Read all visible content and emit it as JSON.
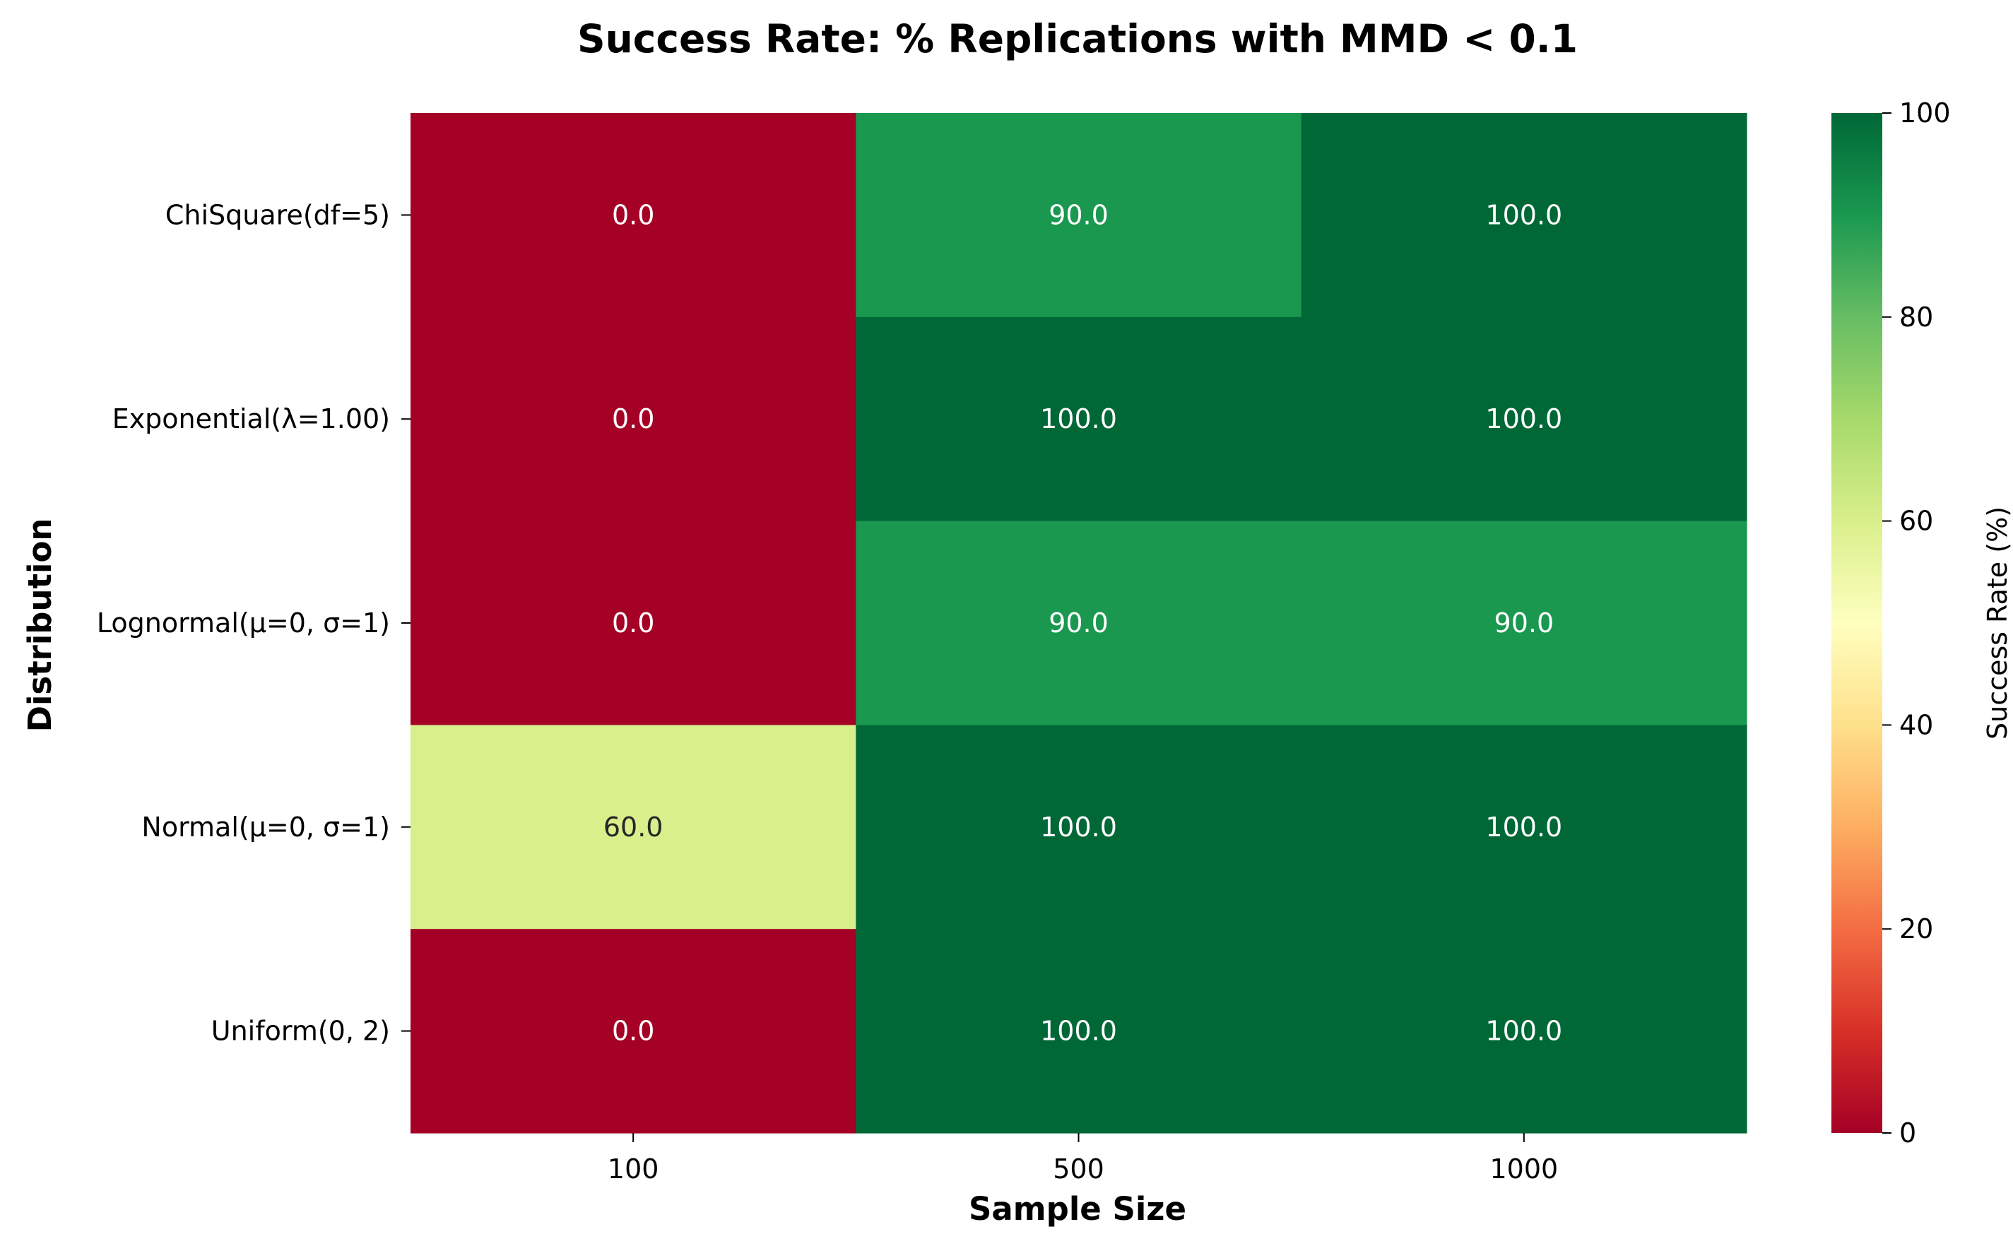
{
  "chart_data": {
    "type": "heatmap",
    "title": "Success Rate: % Replications with MMD < 0.1",
    "xlabel": "Sample Size",
    "ylabel": "Distribution",
    "x_categories": [
      "100",
      "500",
      "1000"
    ],
    "y_categories": [
      "ChiSquare(df=5)",
      "Exponential(λ=1.00)",
      "Lognormal(μ=0, σ=1)",
      "Normal(μ=0, σ=1)",
      "Uniform(0, 2)"
    ],
    "values": [
      [
        0.0,
        90.0,
        100.0
      ],
      [
        0.0,
        100.0,
        100.0
      ],
      [
        0.0,
        90.0,
        90.0
      ],
      [
        60.0,
        100.0,
        100.0
      ],
      [
        0.0,
        100.0,
        100.0
      ]
    ],
    "cell_labels": [
      [
        "0.0",
        "90.0",
        "100.0"
      ],
      [
        "0.0",
        "100.0",
        "100.0"
      ],
      [
        "0.0",
        "90.0",
        "90.0"
      ],
      [
        "60.0",
        "100.0",
        "100.0"
      ],
      [
        "0.0",
        "100.0",
        "100.0"
      ]
    ],
    "colormap": "RdYlGn",
    "vmin": 0,
    "vmax": 100,
    "colorbar": {
      "label": "Success Rate (%)",
      "ticks": [
        "0",
        "20",
        "40",
        "60",
        "80",
        "100"
      ]
    },
    "grid": false,
    "colors": {
      "zero": "#a50026",
      "sixty": "#d9ef8b",
      "ninety": "#1a9850",
      "hundred": "#006837",
      "label_dark_bg": "#ffffff",
      "label_light_bg": "#262626"
    }
  }
}
